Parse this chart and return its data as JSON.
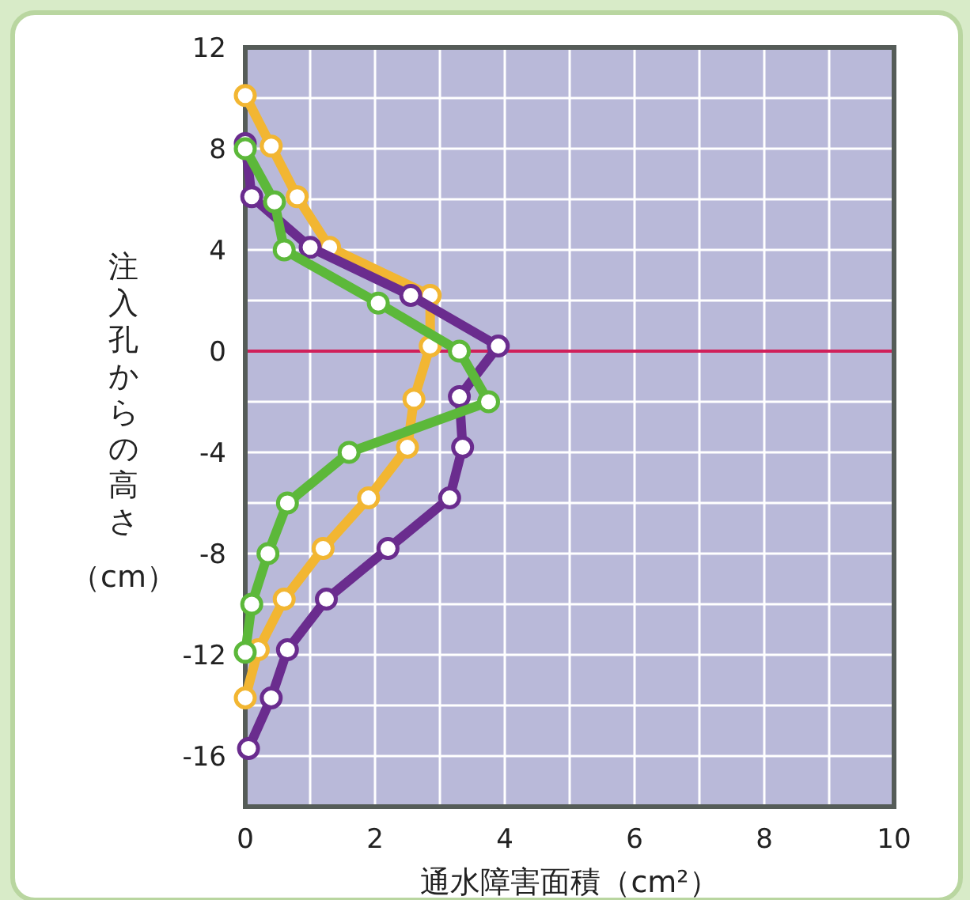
{
  "chart_data": {
    "type": "line",
    "xlabel": "通水障害面積（cm²）",
    "ylabel": "注入孔からの高さ（cm）",
    "xlim": [
      0,
      10
    ],
    "ylim": [
      -18,
      12
    ],
    "xticks": [
      0,
      {
        "value": 1,
        "label": null
      },
      2,
      {
        "value": 3,
        "label": null
      },
      4,
      {
        "value": 5,
        "label": null
      },
      6,
      {
        "value": 7,
        "label": null
      },
      8,
      {
        "value": 9,
        "label": null
      },
      10
    ],
    "yticks": [
      12,
      {
        "value": 10,
        "label": null
      },
      8,
      {
        "value": 6,
        "label": null
      },
      4,
      {
        "value": 2,
        "label": null
      },
      0,
      {
        "value": -2,
        "label": null
      },
      -4,
      {
        "value": -6,
        "label": null
      },
      -8,
      {
        "value": -10,
        "label": null
      },
      -12,
      {
        "value": -14,
        "label": null
      },
      -16
    ],
    "grid": true,
    "marker": "circle",
    "line_style": "solid",
    "ref_lines": [
      {
        "axis": "y",
        "value": 0,
        "color": "#d0205a"
      }
    ],
    "series": [
      {
        "color": "#f2b632",
        "x": [
          0,
          0.4,
          0.8,
          1.3,
          2.85,
          2.85,
          2.6,
          2.5,
          1.9,
          1.2,
          0.6,
          0.2,
          0
        ],
        "values": [
          10.1,
          8.1,
          6.1,
          4.1,
          2.2,
          0.2,
          -1.9,
          -3.8,
          -5.8,
          -7.8,
          -9.8,
          -11.8,
          -13.7
        ]
      },
      {
        "color": "#6a2c8e",
        "x": [
          0,
          0.1,
          1,
          2.55,
          3.9,
          3.3,
          3.35,
          3.15,
          2.2,
          1.25,
          0.65,
          0.4,
          0.05
        ],
        "values": [
          8.2,
          6.1,
          4.1,
          2.2,
          0.2,
          -1.8,
          -3.8,
          -5.8,
          -7.8,
          -9.8,
          -11.8,
          -13.7,
          -15.7
        ]
      },
      {
        "color": "#5cb83a",
        "x": [
          0,
          0.45,
          0.6,
          2.05,
          3.3,
          3.75,
          1.6,
          0.65,
          0.35,
          0.1,
          0
        ],
        "values": [
          8,
          5.9,
          4,
          1.9,
          0,
          -2,
          -4,
          -6,
          -8,
          -10,
          -11.9
        ]
      }
    ]
  }
}
